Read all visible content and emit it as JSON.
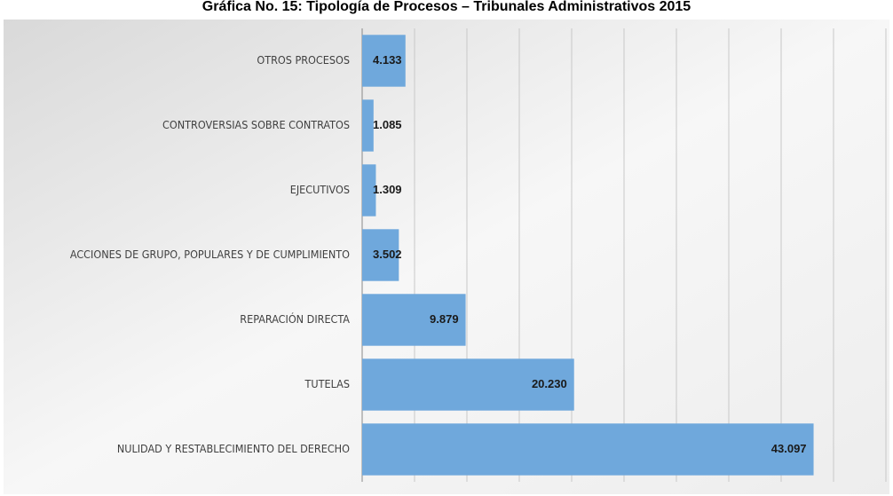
{
  "chart_data": {
    "type": "bar",
    "orientation": "horizontal",
    "title": "Gráfica No. 15: Tipología de Procesos – Tribunales Administrativos 2015",
    "categories": [
      "OTROS PROCESOS",
      "CONTROVERSIAS SOBRE CONTRATOS",
      "EJECUTIVOS",
      "ACCIONES DE GRUPO, POPULARES Y DE CUMPLIMIENTO",
      "REPARACIÓN DIRECTA",
      "TUTELAS",
      "NULIDAD Y RESTABLECIMIENTO DEL DERECHO"
    ],
    "values": [
      4133,
      1085,
      1309,
      3502,
      9879,
      20230,
      43097
    ],
    "value_labels": [
      "4.133",
      "1.085",
      "1.309",
      "3.502",
      "9.879",
      "20.230",
      "43.097"
    ],
    "color": "#6fa8dc",
    "xlim": [
      0,
      50000
    ],
    "xticks": [
      0,
      5000,
      10000,
      15000,
      20000,
      25000,
      30000,
      35000,
      40000,
      45000,
      50000
    ],
    "grid": true
  }
}
